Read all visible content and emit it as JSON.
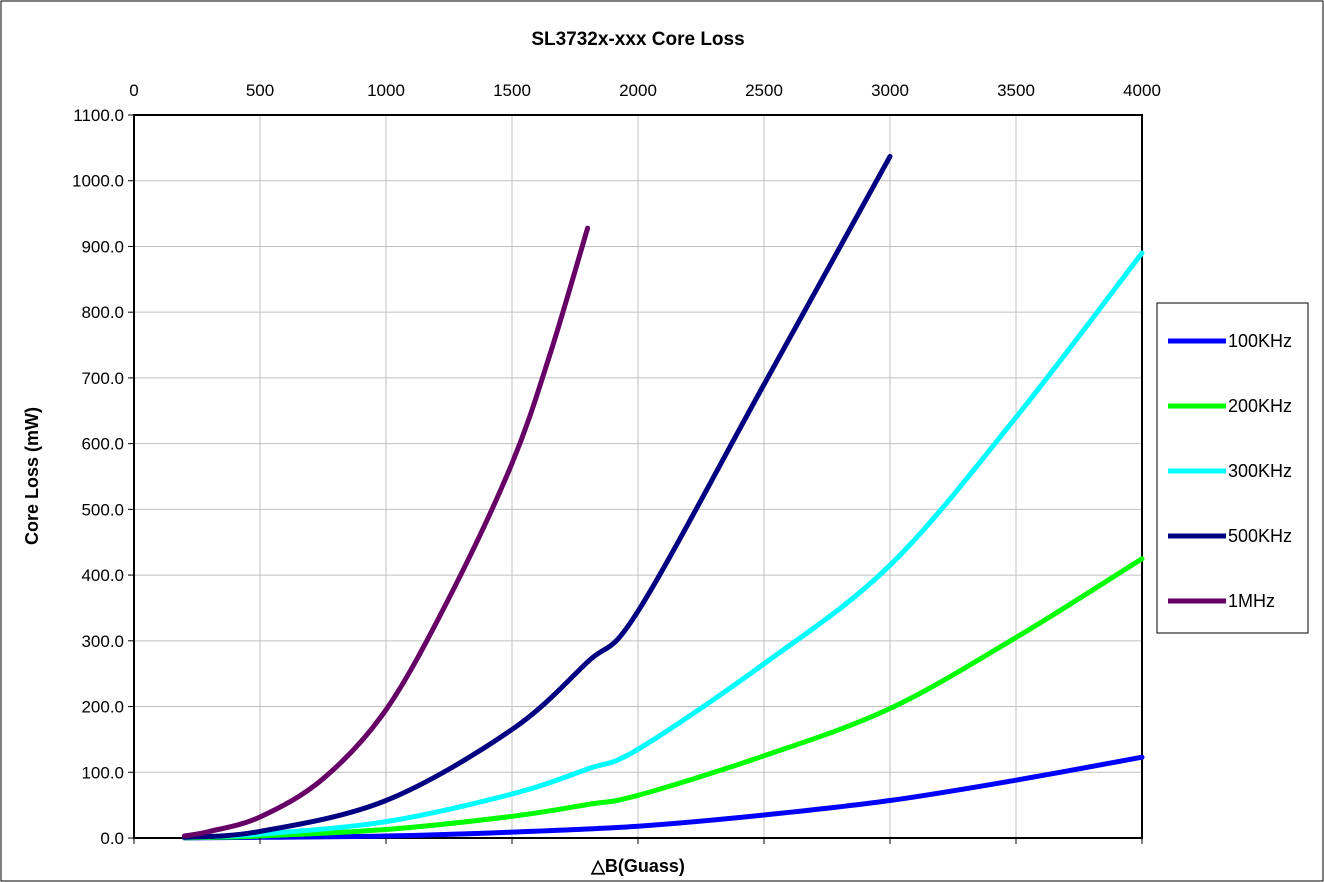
{
  "chart_data": {
    "type": "line",
    "title": "SL3732x-xxx Core Loss",
    "xlabel": "△B(Guass)",
    "ylabel": "Core Loss (mW)",
    "xlim": [
      0,
      4000
    ],
    "ylim": [
      0,
      1100
    ],
    "x_ticks": [
      "0",
      "500",
      "1000",
      "1500",
      "2000",
      "2500",
      "3000",
      "3500",
      "4000"
    ],
    "y_ticks": [
      "0.0",
      "100.0",
      "200.0",
      "300.0",
      "400.0",
      "500.0",
      "600.0",
      "700.0",
      "800.0",
      "900.0",
      "1000.0",
      "1100.0"
    ],
    "x_axis_position": "top",
    "grid": true,
    "legend_position": "right",
    "series": [
      {
        "name": "100KHz",
        "color": "#0000ff",
        "x": [
          200,
          500,
          1000,
          1500,
          2000,
          2500,
          3000,
          3500,
          4000
        ],
        "y": [
          0.2,
          1,
          3,
          9,
          18,
          35,
          57,
          88,
          123
        ]
      },
      {
        "name": "200KHz",
        "color": "#00ff00",
        "x": [
          200,
          500,
          1000,
          1500,
          1800,
          2000,
          2500,
          3000,
          3500,
          4000
        ],
        "y": [
          0.5,
          3,
          13,
          33,
          51,
          65,
          125,
          197,
          305,
          425
        ]
      },
      {
        "name": "300KHz",
        "color": "#00ffff",
        "x": [
          200,
          500,
          1000,
          1500,
          1800,
          2000,
          2500,
          3000,
          3500,
          4000
        ],
        "y": [
          1,
          6,
          25,
          67,
          105,
          135,
          265,
          415,
          640,
          890
        ]
      },
      {
        "name": "500KHz",
        "color": "#000080",
        "x": [
          200,
          500,
          1000,
          1500,
          1800,
          2000,
          2500,
          3000
        ],
        "y": [
          1,
          10,
          57,
          165,
          268,
          345,
          690,
          1037
        ]
      },
      {
        "name": "1MHz",
        "color": "#660066",
        "x": [
          200,
          300,
          500,
          750,
          1000,
          1250,
          1500,
          1650,
          1800
        ],
        "y": [
          3,
          10,
          32,
          90,
          195,
          365,
          570,
          735,
          928
        ]
      }
    ]
  }
}
